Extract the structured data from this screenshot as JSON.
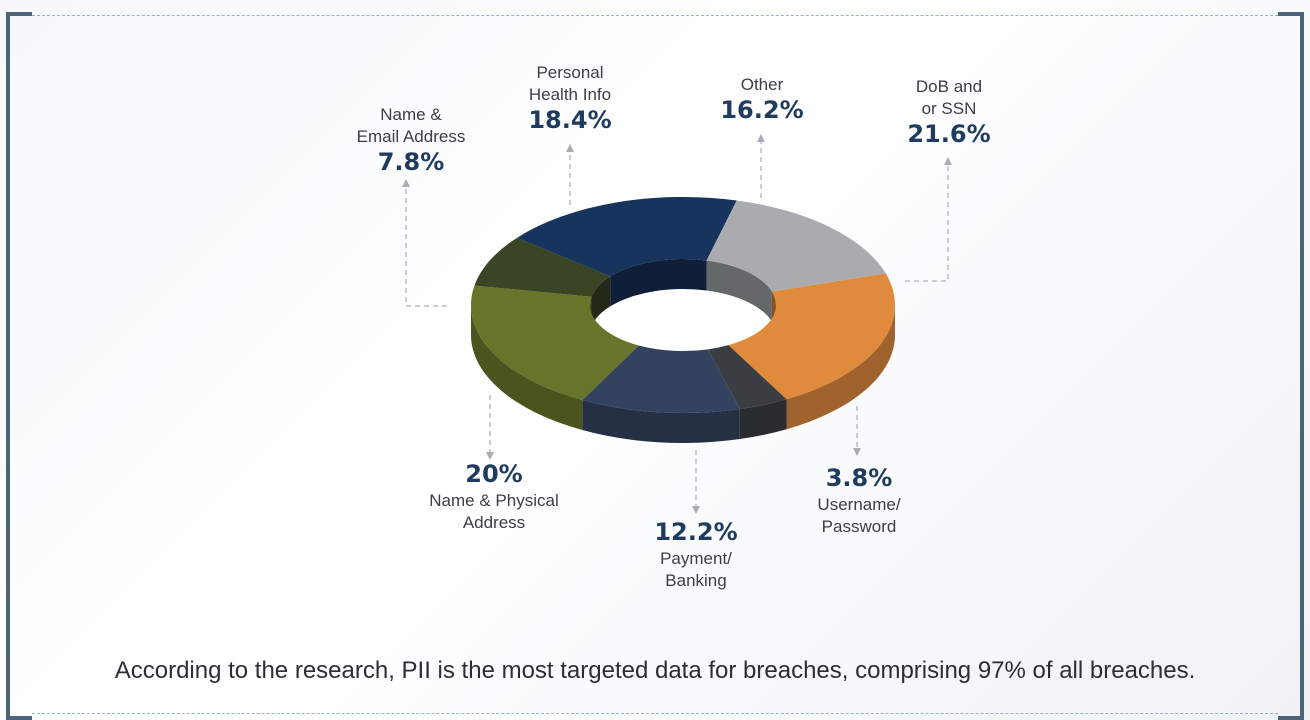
{
  "caption": "According to the research, PII is the most targeted data for breaches, comprising 97% of all breaches.",
  "chart_data": {
    "type": "pie",
    "variant": "3d-donut",
    "grid": false,
    "legend": "none",
    "slices": [
      {
        "label": "DoB and or SSN",
        "label_lines": [
          "DoB and",
          "or SSN"
        ],
        "value": 21.6,
        "value_text": "21.6%",
        "color": "#e08a3e",
        "value_first": false
      },
      {
        "label": "Username/ Password",
        "label_lines": [
          "Username/",
          "Password"
        ],
        "value": 3.8,
        "value_text": "3.8%",
        "color": "#3a3d42",
        "value_first": true
      },
      {
        "label": "Payment/ Banking",
        "label_lines": [
          "Payment/",
          "Banking"
        ],
        "value": 12.2,
        "value_text": "12.2%",
        "color": "#33425f",
        "value_first": true
      },
      {
        "label": "Name & Physical Address",
        "label_lines": [
          "Name & Physical",
          "Address"
        ],
        "value": 20,
        "value_text": "20%",
        "color": "#667529",
        "value_first": true
      },
      {
        "label": "Name & Email Address",
        "label_lines": [
          "Name &",
          "Email Address"
        ],
        "value": 7.8,
        "value_text": "7.8%",
        "color": "#3a4526",
        "value_first": false
      },
      {
        "label": "Personal Health Info",
        "label_lines": [
          "Personal",
          "Health Info"
        ],
        "value": 18.4,
        "value_text": "18.4%",
        "color": "#17345c",
        "value_first": false
      },
      {
        "label": "Other",
        "label_lines": [
          "Other"
        ],
        "value": 16.2,
        "value_text": "16.2%",
        "color": "#a9abae",
        "value_first": false
      }
    ]
  }
}
